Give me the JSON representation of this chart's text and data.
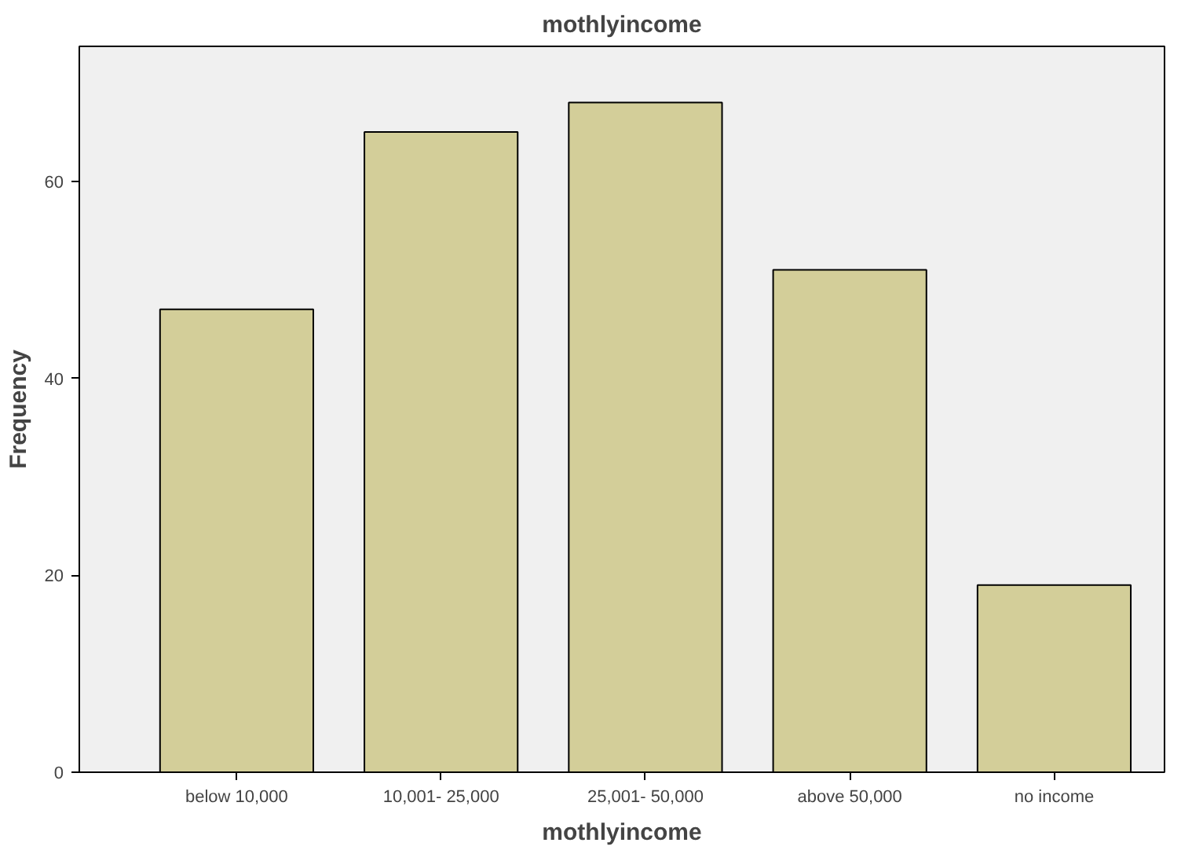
{
  "chart_data": {
    "type": "bar",
    "title": "mothlyincome",
    "xlabel": "mothlyincome",
    "ylabel": "Frequency",
    "categories": [
      "below 10,000",
      "10,001- 25,000",
      "25,001- 50,000",
      "above 50,000",
      "no income"
    ],
    "values": [
      47,
      65,
      68,
      51,
      19
    ],
    "color": "#d3ce99",
    "ylim": [
      0,
      73.7
    ],
    "yticks": [
      0,
      20,
      40,
      60
    ],
    "grid": false
  }
}
